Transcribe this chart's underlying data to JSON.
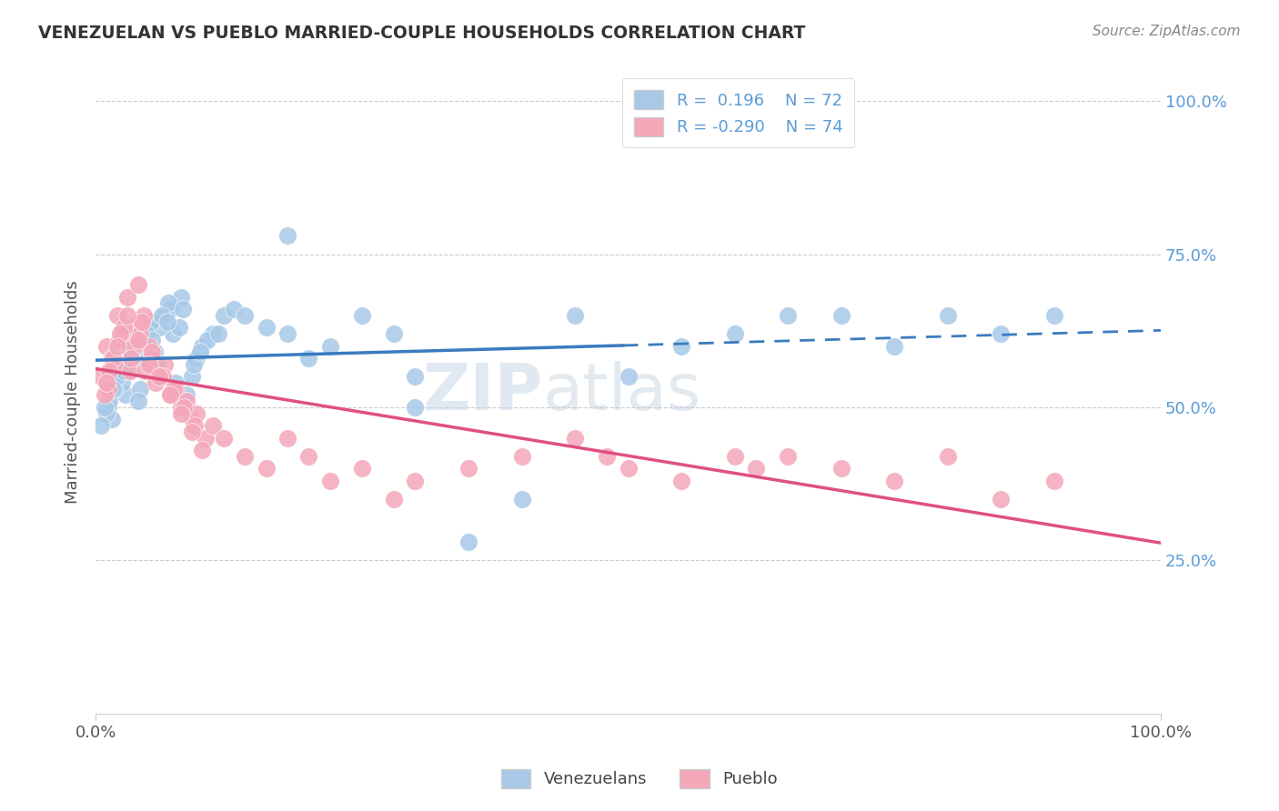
{
  "title": "VENEZUELAN VS PUEBLO MARRIED-COUPLE HOUSEHOLDS CORRELATION CHART",
  "source": "Source: ZipAtlas.com",
  "ylabel": "Married-couple Households",
  "legend_label1": "Venezuelans",
  "legend_label2": "Pueblo",
  "r1": 0.196,
  "n1": 72,
  "r2": -0.29,
  "n2": 74,
  "watermark_zip": "ZIP",
  "watermark_atlas": "atlas",
  "blue_color": "#a8c8e8",
  "pink_color": "#f4a7b9",
  "blue_line_color": "#3a7bbf",
  "pink_line_color": "#e05080",
  "ytick_color": "#5b9bd5",
  "blue_x": [
    1.2,
    2.1,
    2.8,
    3.5,
    4.2,
    5.0,
    5.8,
    6.5,
    7.2,
    8.0,
    1.5,
    2.5,
    3.0,
    4.0,
    5.5,
    6.0,
    7.0,
    8.5,
    9.0,
    10.0,
    1.0,
    1.8,
    2.3,
    3.2,
    4.5,
    5.2,
    6.8,
    7.5,
    9.5,
    11.0,
    0.5,
    1.3,
    2.0,
    3.8,
    4.8,
    6.2,
    7.8,
    9.2,
    10.5,
    12.0,
    0.8,
    1.6,
    2.6,
    3.3,
    5.3,
    6.7,
    8.2,
    9.8,
    11.5,
    13.0,
    14.0,
    16.0,
    18.0,
    20.0,
    22.0,
    25.0,
    28.0,
    30.0,
    35.0,
    40.0,
    45.0,
    50.0,
    55.0,
    60.0,
    65.0,
    70.0,
    75.0,
    80.0,
    85.0,
    90.0,
    18.0,
    30.0
  ],
  "blue_y": [
    50,
    55,
    52,
    58,
    53,
    60,
    57,
    65,
    62,
    68,
    48,
    54,
    56,
    51,
    59,
    63,
    66,
    52,
    55,
    60,
    49,
    53,
    57,
    61,
    58,
    64,
    67,
    54,
    58,
    62,
    47,
    51,
    55,
    60,
    62,
    65,
    63,
    57,
    61,
    65,
    50,
    53,
    56,
    59,
    61,
    64,
    66,
    59,
    62,
    66,
    65,
    63,
    62,
    58,
    60,
    65,
    62,
    55,
    28,
    35,
    65,
    55,
    60,
    62,
    65,
    65,
    60,
    65,
    62,
    65,
    78,
    50
  ],
  "pink_x": [
    0.5,
    1.0,
    1.5,
    2.0,
    2.5,
    3.0,
    3.5,
    4.0,
    4.5,
    5.0,
    1.2,
    1.8,
    2.2,
    3.2,
    4.2,
    5.2,
    6.0,
    7.0,
    8.0,
    9.0,
    0.8,
    1.6,
    2.6,
    3.6,
    4.6,
    5.6,
    6.5,
    7.5,
    8.5,
    9.5,
    1.3,
    2.3,
    3.3,
    4.3,
    5.3,
    6.3,
    7.3,
    8.3,
    9.3,
    10.3,
    1.0,
    2.0,
    3.0,
    4.0,
    5.0,
    6.0,
    7.0,
    8.0,
    9.0,
    10.0,
    11.0,
    12.0,
    14.0,
    16.0,
    18.0,
    20.0,
    22.0,
    25.0,
    28.0,
    30.0,
    35.0,
    40.0,
    45.0,
    48.0,
    50.0,
    55.0,
    60.0,
    62.0,
    65.0,
    70.0,
    75.0,
    80.0,
    85.0,
    90.0
  ],
  "pink_y": [
    55,
    60,
    58,
    65,
    62,
    68,
    63,
    70,
    65,
    60,
    53,
    57,
    61,
    56,
    62,
    58,
    55,
    52,
    50,
    48,
    52,
    58,
    63,
    60,
    56,
    54,
    57,
    53,
    51,
    49,
    56,
    62,
    58,
    64,
    59,
    55,
    53,
    50,
    47,
    45,
    54,
    60,
    65,
    61,
    57,
    55,
    52,
    49,
    46,
    43,
    47,
    45,
    42,
    40,
    45,
    42,
    38,
    40,
    35,
    38,
    40,
    42,
    45,
    42,
    40,
    38,
    42,
    40,
    42,
    40,
    38,
    42,
    35,
    38
  ]
}
